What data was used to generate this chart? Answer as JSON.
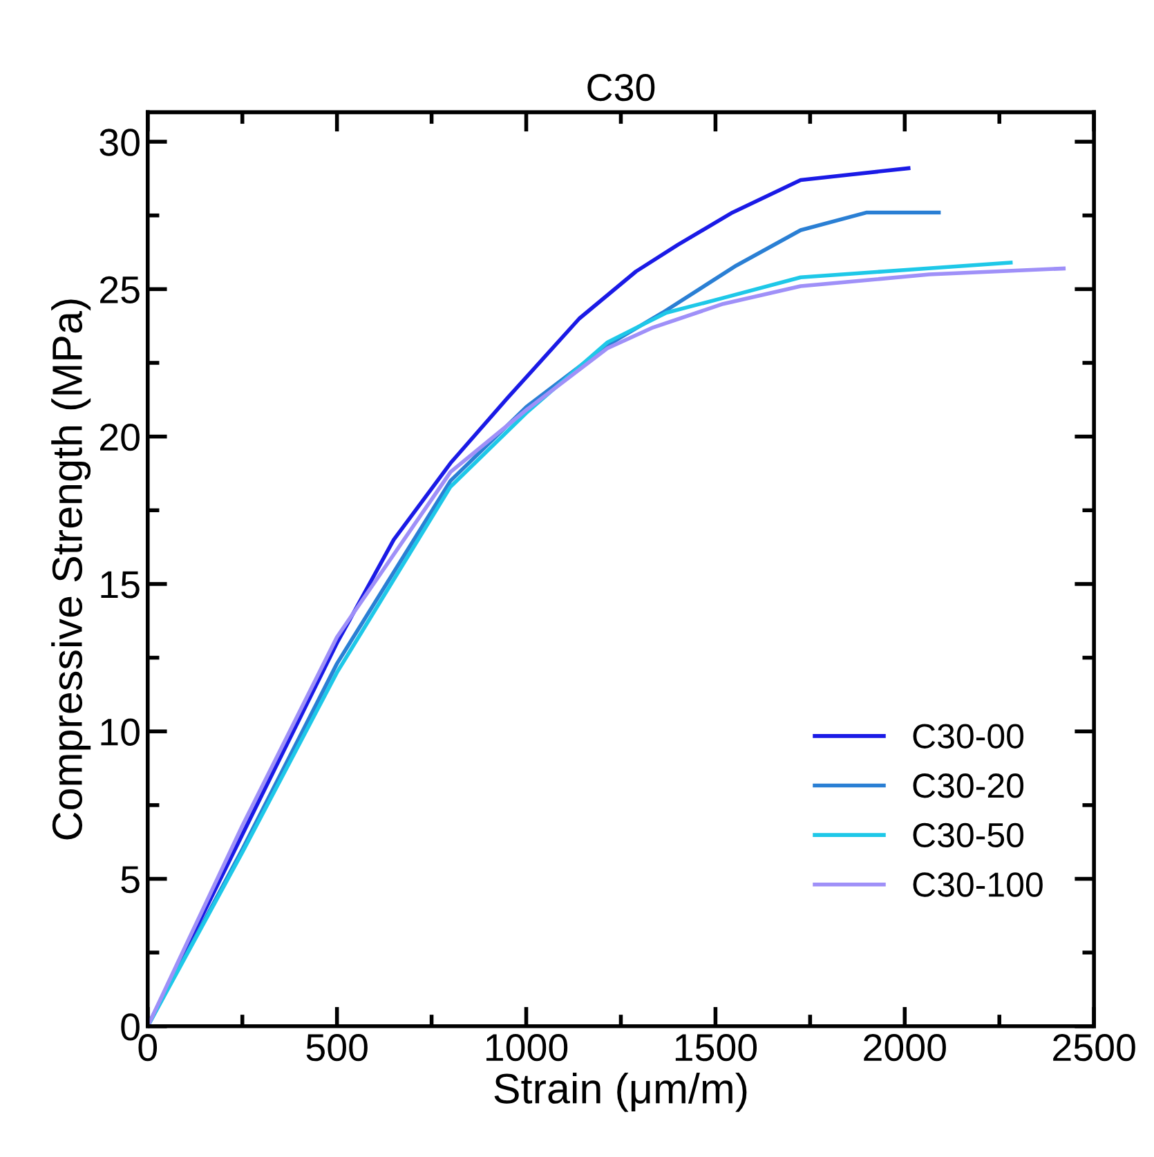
{
  "chart_data": {
    "type": "line",
    "title": "C30",
    "xlabel": "Strain (μm/m)",
    "ylabel": "Compressive Strength (MPa)",
    "xlim": [
      0,
      2500
    ],
    "ylim": [
      0,
      31
    ],
    "xticks": [
      0,
      500,
      1000,
      1500,
      2000,
      2500
    ],
    "yticks": [
      0,
      5,
      10,
      15,
      20,
      25,
      30
    ],
    "grid": false,
    "legend": "bottom right",
    "marker": "none",
    "line_style": "solid",
    "series": [
      {
        "name": "C30-00",
        "color": "#1a1ae6",
        "x": [
          0,
          100,
          200,
          300,
          400,
          500,
          650,
          800,
          950,
          1140,
          1290,
          1400,
          1545,
          1725,
          2010
        ],
        "values": [
          0,
          2.6,
          5.2,
          7.8,
          10.4,
          13.0,
          16.5,
          19.1,
          21.3,
          24.0,
          25.6,
          26.5,
          27.6,
          28.7,
          29.1
        ]
      },
      {
        "name": "C30-20",
        "color": "#2a7fd4",
        "x": [
          0,
          250,
          500,
          800,
          1000,
          1215,
          1360,
          1555,
          1725,
          1900,
          2090
        ],
        "values": [
          0,
          6.0,
          12.3,
          18.5,
          21.0,
          23.1,
          24.2,
          25.8,
          27.0,
          27.6,
          27.6
        ]
      },
      {
        "name": "C30-50",
        "color": "#1ec8e8",
        "x": [
          0,
          250,
          500,
          800,
          1000,
          1215,
          1370,
          1520,
          1725,
          1945,
          2280
        ],
        "values": [
          0,
          5.9,
          12.0,
          18.3,
          20.8,
          23.2,
          24.2,
          24.7,
          25.4,
          25.6,
          25.9
        ]
      },
      {
        "name": "C30-100",
        "color": "#9f90f8",
        "x": [
          0,
          250,
          500,
          800,
          1000,
          1215,
          1335,
          1520,
          1725,
          2065,
          2420
        ],
        "values": [
          0,
          6.8,
          13.2,
          18.8,
          20.9,
          23.0,
          23.7,
          24.5,
          25.1,
          25.5,
          25.7
        ]
      }
    ]
  }
}
